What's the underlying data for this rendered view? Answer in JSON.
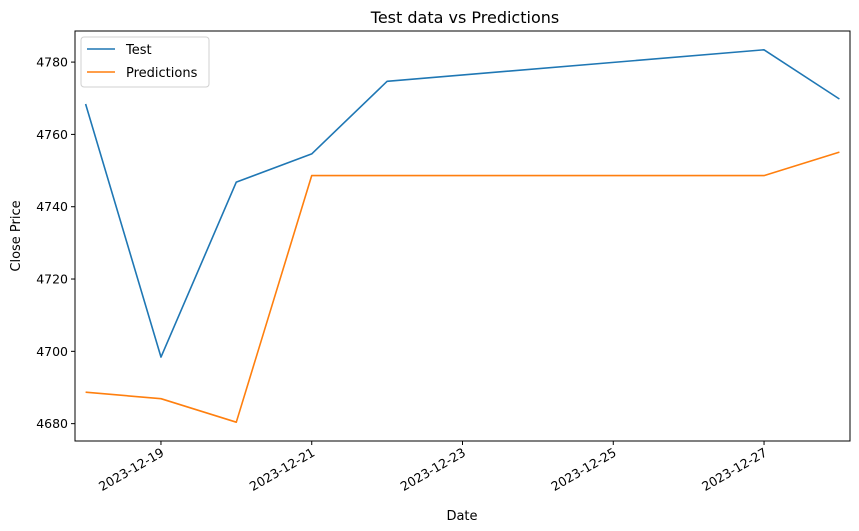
{
  "chart_data": {
    "type": "line",
    "title": "Test data vs Predictions",
    "xlabel": "Date",
    "ylabel": "Close Price",
    "x": [
      "2023-12-18",
      "2023-12-19",
      "2023-12-20",
      "2023-12-21",
      "2023-12-22",
      "2023-12-27",
      "2023-12-28"
    ],
    "series": [
      {
        "name": "Test",
        "color": "#1f77b4",
        "values": [
          4768.4,
          4698.4,
          4746.8,
          4754.6,
          4774.7,
          4783.4,
          4769.8
        ]
      },
      {
        "name": "Predictions",
        "color": "#ff7f0e",
        "values": [
          4688.7,
          4686.9,
          4680.4,
          4748.6,
          4748.6,
          4748.6,
          4755.1
        ]
      }
    ],
    "xticks": [
      "2023-12-19",
      "2023-12-21",
      "2023-12-23",
      "2023-12-25",
      "2023-12-27"
    ],
    "yticks": [
      4680,
      4700,
      4720,
      4740,
      4760,
      4780
    ],
    "xlim": [
      "2023-12-17T20:38",
      "2023-12-28T03:22"
    ],
    "ylim": [
      4675.2,
      4788.6
    ],
    "grid": false,
    "legend": "upper-left"
  }
}
